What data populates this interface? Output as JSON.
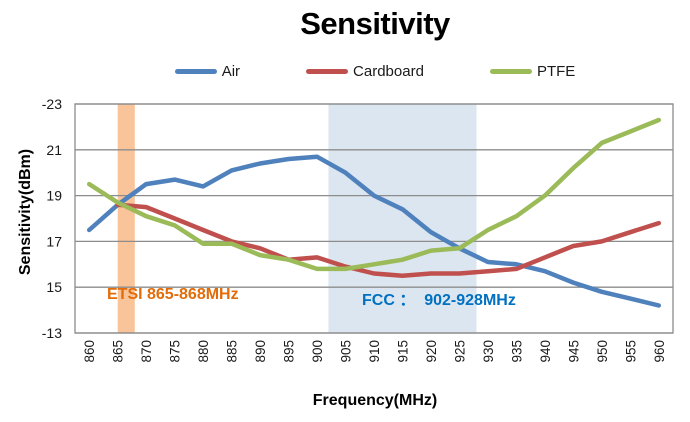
{
  "title": "Sensitivity",
  "y_axis_title": "Sensitivity(dBm)",
  "x_axis_title": "Frequency(MHz)",
  "y_tick_labels": [
    "-23",
    "21",
    "19",
    "17",
    "15",
    "-13"
  ],
  "legend": [
    {
      "label": "Air",
      "color": "#4F81BD"
    },
    {
      "label": "Cardboard",
      "color": "#C0504D"
    },
    {
      "label": "PTFE",
      "color": "#9BBB59"
    }
  ],
  "annotations": [
    {
      "id": "etsi",
      "text": "ETSI 865-868MHz",
      "color": "#E36C0A"
    },
    {
      "id": "fcc",
      "text": "FCC ：  902-928MHz",
      "color": "#0070C0"
    }
  ],
  "chart_data": {
    "type": "line",
    "title": "Sensitivity",
    "xlabel": "Frequency(MHz)",
    "ylabel": "Sensitivity(dBm)",
    "x": [
      860,
      865,
      870,
      875,
      880,
      885,
      890,
      895,
      900,
      905,
      910,
      915,
      920,
      925,
      930,
      935,
      940,
      945,
      950,
      955,
      960
    ],
    "series": [
      {
        "name": "Air",
        "color": "#4F81BD",
        "values": [
          -17.5,
          -18.6,
          -19.5,
          -19.7,
          -19.4,
          -20.1,
          -20.4,
          -20.6,
          -20.7,
          -20.0,
          -19.0,
          -18.4,
          -17.4,
          -16.7,
          -16.1,
          -16.0,
          -15.7,
          -15.2,
          -14.8,
          -14.5,
          -14.2
        ]
      },
      {
        "name": "Cardboard",
        "color": "#C0504D",
        "values": [
          null,
          -18.6,
          -18.5,
          -18.0,
          -17.5,
          -17.0,
          -16.7,
          -16.2,
          -16.3,
          -15.9,
          -15.6,
          -15.5,
          -15.6,
          -15.6,
          -15.7,
          -15.8,
          -16.3,
          -16.8,
          -17.0,
          -17.4,
          -17.8
        ]
      },
      {
        "name": "PTFE",
        "color": "#9BBB59",
        "values": [
          -19.5,
          -18.7,
          -18.1,
          -17.7,
          -16.9,
          -16.9,
          -16.4,
          -16.2,
          -15.8,
          -15.8,
          -16.0,
          -16.2,
          -16.6,
          -16.7,
          -17.5,
          -18.1,
          -19.0,
          -20.2,
          -21.3,
          -21.8,
          -22.3
        ]
      }
    ],
    "ylim_top_to_bottom": [
      -23,
      -13
    ],
    "gridline_values": [
      -23,
      -21,
      -19,
      -17,
      -15,
      -13
    ],
    "grid": true,
    "legend_position": "top",
    "bands": [
      {
        "name": "ETSI 865-868MHz",
        "x0": 865,
        "x1": 868,
        "color": "#F9C499"
      },
      {
        "name": "FCC 902-928MHz",
        "x0": 902,
        "x1": 928,
        "color": "#DCE6F1"
      }
    ],
    "grid_color": "#8C8C8C"
  }
}
